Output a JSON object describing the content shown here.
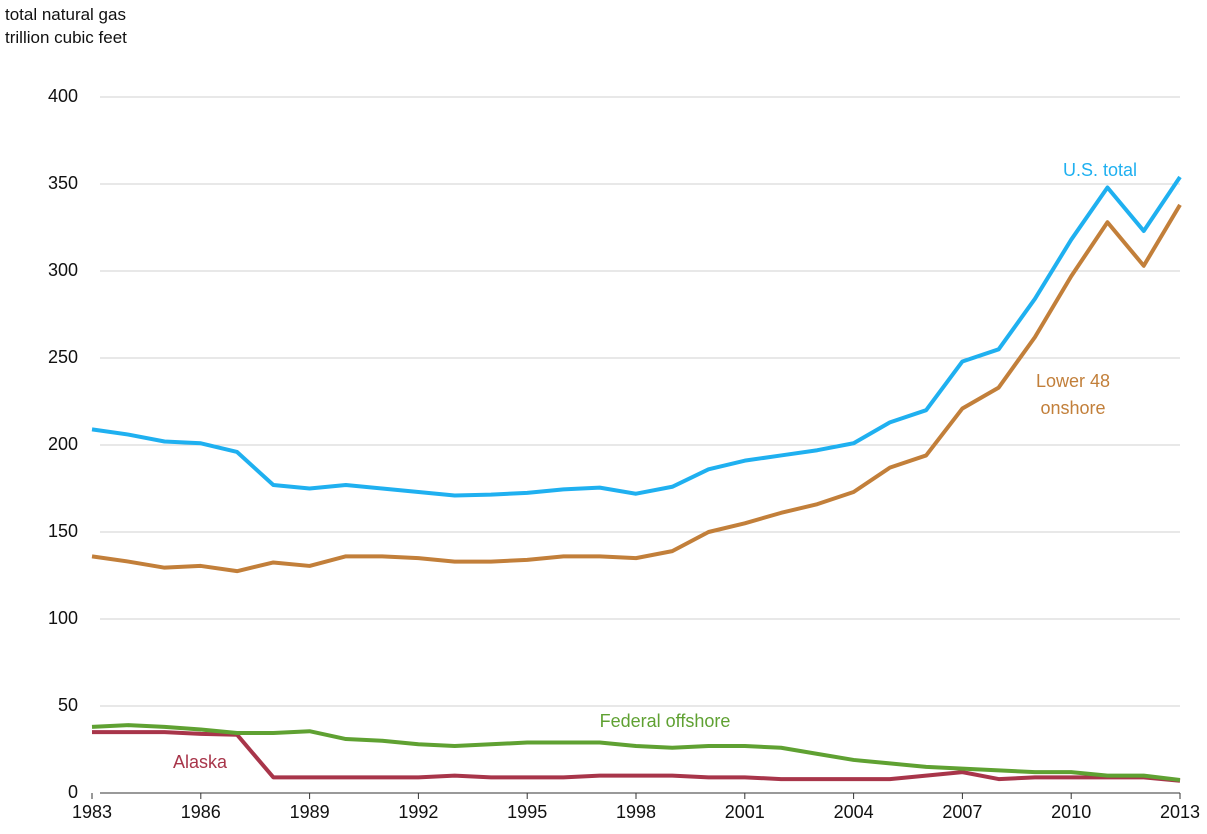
{
  "chart_data": {
    "type": "line",
    "title": "total natural gas",
    "y_label": "trillion cubic feet",
    "x": [
      1983,
      1984,
      1985,
      1986,
      1987,
      1988,
      1989,
      1990,
      1991,
      1992,
      1993,
      1994,
      1995,
      1996,
      1997,
      1998,
      1999,
      2000,
      2001,
      2002,
      2003,
      2004,
      2005,
      2006,
      2007,
      2008,
      2009,
      2010,
      2011,
      2012,
      2013
    ],
    "series": [
      {
        "name": "U.S. total",
        "color": "#1fb0f0",
        "values": [
          209,
          206,
          202,
          201,
          196,
          177,
          175,
          177,
          175,
          173,
          171,
          171.5,
          172.5,
          174.5,
          175.5,
          172,
          176,
          186,
          191,
          194,
          197,
          201,
          213,
          220,
          248,
          255,
          284,
          318,
          348,
          323,
          354
        ]
      },
      {
        "name": "Lower 48 onshore",
        "color": "#c27f3a",
        "values": [
          136,
          133,
          129.5,
          130.5,
          127.5,
          132.5,
          130.5,
          136,
          136,
          135,
          133,
          133,
          134,
          136,
          136,
          135,
          139,
          150,
          155,
          161,
          166,
          173,
          187,
          194,
          221,
          233,
          262,
          297,
          328,
          303,
          338
        ]
      },
      {
        "name": "Federal offshore",
        "color": "#5fa132",
        "values": [
          38,
          39,
          38,
          36.5,
          34.5,
          34.5,
          35.5,
          31,
          30,
          28,
          27,
          28,
          29,
          29,
          29,
          27,
          26,
          27,
          27,
          26,
          22.5,
          19,
          17,
          15,
          14,
          13,
          12,
          12,
          10,
          10,
          7.5
        ]
      },
      {
        "name": "Alaska",
        "color": "#a8354a",
        "values": [
          35,
          35,
          35,
          34,
          33.5,
          9,
          9,
          9,
          9,
          9,
          10,
          9,
          9,
          9,
          10,
          10,
          10,
          9,
          9,
          8,
          8,
          8,
          8,
          10,
          12,
          8,
          9,
          9,
          9,
          9,
          7
        ]
      }
    ],
    "xlim": [
      1983,
      2013
    ],
    "xticks": [
      1983,
      1986,
      1989,
      1992,
      1995,
      1998,
      2001,
      2004,
      2007,
      2010,
      2013
    ],
    "ylim": [
      0,
      400
    ],
    "yticks": [
      0,
      50,
      100,
      150,
      200,
      250,
      300,
      350,
      400
    ],
    "grid": true
  }
}
